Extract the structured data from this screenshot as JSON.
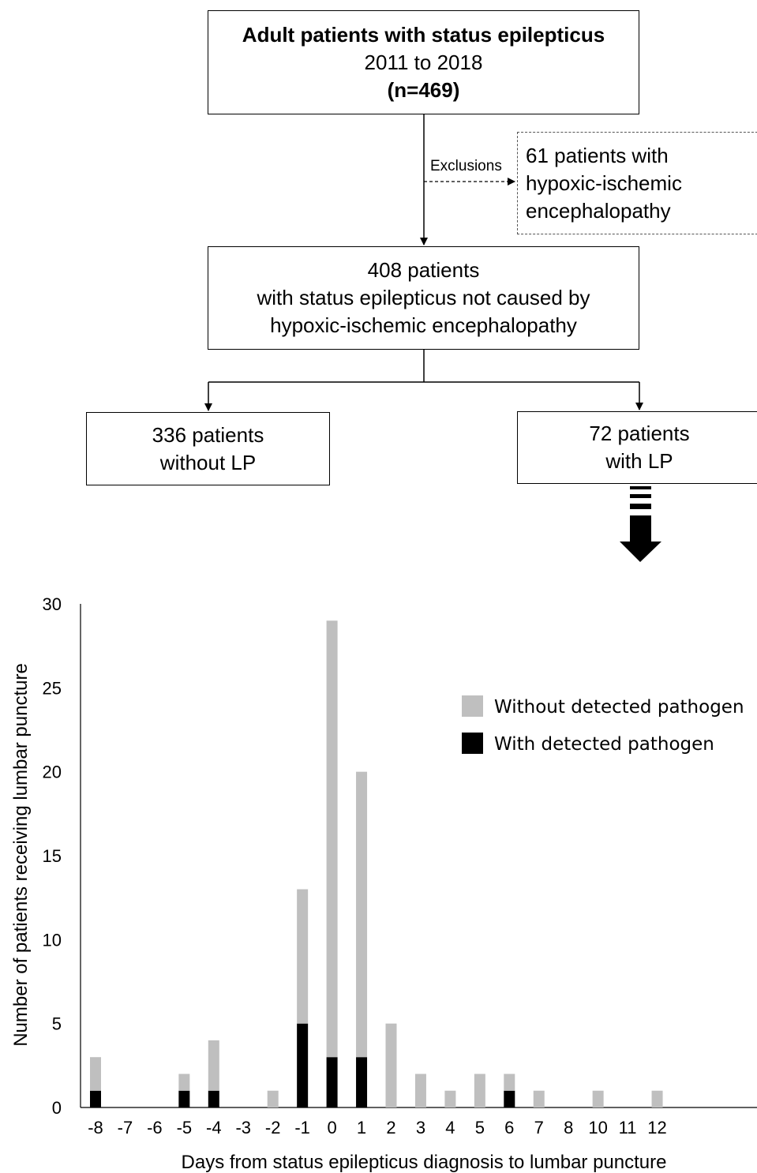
{
  "flowchart": {
    "top_box": {
      "line1": "Adult patients with status epilepticus",
      "line2": "2011 to 2018",
      "line3": "(n=469)"
    },
    "exclusions_label": "Exclusions",
    "exclusion_box": {
      "line1": "61 patients with",
      "line2": "hypoxic-ischemic",
      "line3": "encephalopathy"
    },
    "middle_box": {
      "line1": "408 patients",
      "line2": "with status epilepticus not caused by",
      "line3": "hypoxic-ischemic encephalopathy"
    },
    "left_box": {
      "line1": "336 patients",
      "line2": "without LP"
    },
    "right_box": {
      "line1": "72 patients",
      "line2": "with LP"
    }
  },
  "chart_data": {
    "type": "bar",
    "stacked": true,
    "categories": [
      "-8",
      "-7",
      "-6",
      "-5",
      "-4",
      "-3",
      "-2",
      "-1",
      "0",
      "1",
      "2",
      "3",
      "4",
      "5",
      "6",
      "7",
      "8",
      "10",
      "11",
      "12"
    ],
    "series": [
      {
        "name": "With detected pathogen",
        "color": "#000000",
        "values": [
          1,
          0,
          0,
          1,
          1,
          0,
          0,
          5,
          3,
          3,
          0,
          0,
          0,
          0,
          1,
          0,
          0,
          0,
          0,
          0
        ]
      },
      {
        "name": "Without detected pathogen",
        "color": "#bfbfbf",
        "values": [
          2,
          0,
          0,
          1,
          3,
          0,
          1,
          8,
          26,
          17,
          5,
          2,
          1,
          2,
          1,
          1,
          0,
          1,
          0,
          1
        ]
      }
    ],
    "xlabel": "Days from status epilepticus diagnosis to lumbar puncture",
    "ylabel": "Number of patients receiving lumbar puncture",
    "ylim": [
      0,
      30
    ],
    "yticks": [
      "0",
      "5",
      "10",
      "15",
      "20",
      "25",
      "30"
    ],
    "legend_position": "top-right",
    "grid": false
  }
}
